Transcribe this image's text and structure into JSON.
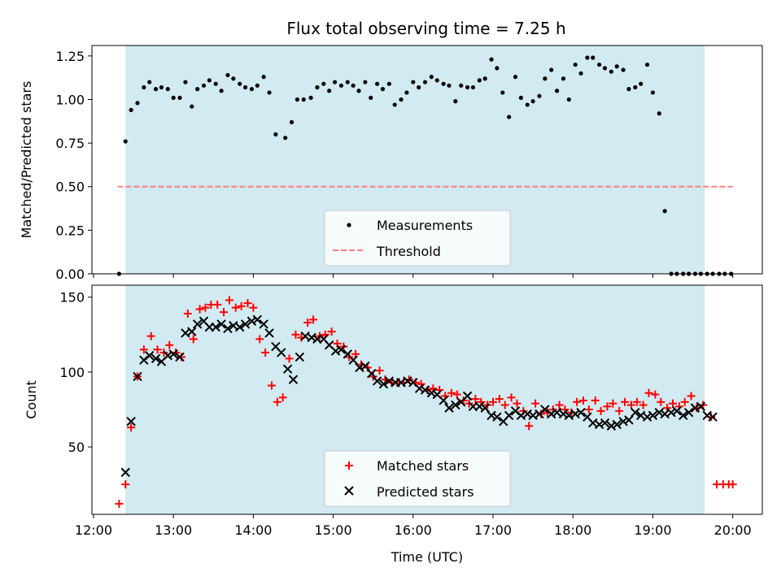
{
  "chart_data": {
    "title": "Flux total observing time = 7.25 h",
    "xlabel": "Time (UTC)",
    "x_unit": "hours UTC",
    "xlim": [
      11.98,
      20.37
    ],
    "x_tick_values": [
      12,
      13,
      14,
      15,
      16,
      17,
      18,
      19,
      20
    ],
    "x_tick_labels": [
      "12:00",
      "13:00",
      "14:00",
      "15:00",
      "16:00",
      "17:00",
      "18:00",
      "19:00",
      "20:00"
    ],
    "shaded_span": [
      12.4,
      19.65
    ],
    "shaded_color": "#add8e6",
    "panels": [
      {
        "id": "ratio",
        "type": "scatter",
        "ylabel": "Matched/Predicted stars",
        "ylim": [
          0,
          1.31
        ],
        "y_ticks": [
          0.0,
          0.25,
          0.5,
          0.75,
          1.0,
          1.25
        ],
        "y_tick_labels": [
          "0.00",
          "0.25",
          "0.50",
          "0.75",
          "1.00",
          "1.25"
        ],
        "legend_position": "lower center",
        "threshold": {
          "name": "Threshold",
          "value": 0.5,
          "x_range": [
            12.3,
            20.0
          ],
          "color": "#ff8080",
          "style": "dashed"
        },
        "series": [
          {
            "name": "Measurements",
            "marker": "dot",
            "color": "#000000",
            "x": [
              12.32,
              12.4,
              12.47,
              12.55,
              12.63,
              12.7,
              12.78,
              12.85,
              12.93,
              13.0,
              13.08,
              13.15,
              13.23,
              13.3,
              13.38,
              13.45,
              13.53,
              13.6,
              13.68,
              13.75,
              13.83,
              13.9,
              13.98,
              14.05,
              14.13,
              14.2,
              14.28,
              14.4,
              14.48,
              14.55,
              14.63,
              14.72,
              14.8,
              14.88,
              14.95,
              15.02,
              15.1,
              15.18,
              15.25,
              15.32,
              15.4,
              15.47,
              15.55,
              15.62,
              15.7,
              15.77,
              15.85,
              15.92,
              16.0,
              16.07,
              16.15,
              16.23,
              16.3,
              16.38,
              16.45,
              16.53,
              16.6,
              16.68,
              16.75,
              16.83,
              16.9,
              16.98,
              17.05,
              17.12,
              17.2,
              17.28,
              17.35,
              17.43,
              17.5,
              17.58,
              17.65,
              17.73,
              17.8,
              17.88,
              17.95,
              18.03,
              18.1,
              18.18,
              18.25,
              18.33,
              18.4,
              18.48,
              18.55,
              18.63,
              18.7,
              18.78,
              18.85,
              18.93,
              19.0,
              19.08,
              19.15,
              19.23,
              19.3,
              19.38,
              19.45,
              19.53,
              19.6,
              19.68,
              19.75,
              19.83,
              19.9,
              19.98
            ],
            "y": [
              0.0,
              0.76,
              0.94,
              0.98,
              1.07,
              1.1,
              1.06,
              1.07,
              1.06,
              1.01,
              1.01,
              1.1,
              0.96,
              1.06,
              1.08,
              1.11,
              1.09,
              1.05,
              1.14,
              1.12,
              1.09,
              1.07,
              1.06,
              1.08,
              1.13,
              1.04,
              0.8,
              0.78,
              0.87,
              1.0,
              1.0,
              1.01,
              1.07,
              1.09,
              1.05,
              1.1,
              1.08,
              1.1,
              1.08,
              1.05,
              1.1,
              1.01,
              1.09,
              1.06,
              1.09,
              0.97,
              1.0,
              1.04,
              1.1,
              1.07,
              1.1,
              1.13,
              1.11,
              1.09,
              1.08,
              0.99,
              1.08,
              1.07,
              1.07,
              1.11,
              1.12,
              1.23,
              1.18,
              1.04,
              0.9,
              1.13,
              1.01,
              0.97,
              0.99,
              1.02,
              1.12,
              1.17,
              1.05,
              1.12,
              1.0,
              1.2,
              1.15,
              1.24,
              1.24,
              1.2,
              1.18,
              1.16,
              1.19,
              1.17,
              1.06,
              1.07,
              1.09,
              1.2,
              1.04,
              0.92,
              0.36,
              0.0,
              0.0,
              0.0,
              0.0,
              0.0,
              0.0,
              0.0,
              0.0,
              0.0,
              0.0,
              0.0
            ]
          }
        ]
      },
      {
        "id": "counts",
        "type": "scatter",
        "ylabel": "Count",
        "ylim": [
          5,
          158
        ],
        "y_ticks": [
          50,
          100,
          150
        ],
        "y_tick_labels": [
          "50",
          "100",
          "150"
        ],
        "legend_position": "lower center",
        "series": [
          {
            "name": "Matched stars",
            "marker": "plus",
            "color": "#ff0000",
            "x": [
              12.32,
              12.4,
              12.47,
              12.55,
              12.63,
              12.72,
              12.8,
              12.88,
              12.95,
              13.03,
              13.1,
              13.18,
              13.25,
              13.33,
              13.4,
              13.47,
              13.55,
              13.63,
              13.7,
              13.78,
              13.85,
              13.93,
              14.0,
              14.08,
              14.15,
              14.23,
              14.3,
              14.37,
              14.45,
              14.53,
              14.6,
              14.68,
              14.75,
              14.83,
              14.9,
              14.98,
              15.05,
              15.13,
              15.2,
              15.28,
              15.35,
              15.43,
              15.5,
              15.58,
              15.65,
              15.73,
              15.8,
              15.88,
              15.95,
              16.03,
              16.1,
              16.18,
              16.25,
              16.33,
              16.4,
              16.48,
              16.55,
              16.63,
              16.7,
              16.78,
              16.85,
              16.93,
              17.0,
              17.08,
              17.15,
              17.23,
              17.3,
              17.38,
              17.45,
              17.53,
              17.6,
              17.68,
              17.75,
              17.83,
              17.9,
              17.98,
              18.05,
              18.13,
              18.2,
              18.28,
              18.35,
              18.43,
              18.5,
              18.58,
              18.65,
              18.73,
              18.8,
              18.88,
              18.95,
              19.03,
              19.1,
              19.18,
              19.25,
              19.33,
              19.4,
              19.48,
              19.55,
              19.63,
              19.73,
              19.8,
              19.88,
              19.95,
              20.0
            ],
            "y": [
              12,
              25,
              63,
              97,
              115,
              124,
              115,
              113,
              118,
              113,
              110,
              139,
              122,
              142,
              143,
              145,
              145,
              140,
              148,
              143,
              144,
              146,
              143,
              122,
              113,
              91,
              80,
              83,
              109,
              125,
              123,
              133,
              135,
              124,
              125,
              127,
              119,
              117,
              110,
              112,
              105,
              103,
              97,
              101,
              95,
              93,
              93,
              93,
              95,
              93,
              92,
              88,
              89,
              88,
              84,
              86,
              85,
              81,
              79,
              82,
              80,
              78,
              80,
              82,
              78,
              83,
              79,
              74,
              64,
              79,
              72,
              73,
              75,
              78,
              75,
              73,
              80,
              81,
              75,
              81,
              74,
              77,
              79,
              74,
              80,
              78,
              80,
              78,
              86,
              85,
              80,
              76,
              79,
              77,
              80,
              84,
              76,
              78,
              70,
              25,
              25,
              25,
              25
            ]
          },
          {
            "name": "Predicted stars",
            "marker": "x",
            "color": "#000000",
            "x": [
              12.4,
              12.47,
              12.55,
              12.63,
              12.7,
              12.78,
              12.85,
              12.93,
              13.0,
              13.08,
              13.15,
              13.23,
              13.3,
              13.38,
              13.45,
              13.53,
              13.6,
              13.68,
              13.75,
              13.83,
              13.9,
              13.98,
              14.05,
              14.13,
              14.2,
              14.28,
              14.35,
              14.43,
              14.5,
              14.58,
              14.65,
              14.73,
              14.8,
              14.88,
              14.95,
              15.03,
              15.1,
              15.18,
              15.25,
              15.33,
              15.4,
              15.48,
              15.55,
              15.63,
              15.7,
              15.78,
              15.85,
              15.93,
              16.0,
              16.08,
              16.15,
              16.23,
              16.3,
              16.38,
              16.45,
              16.53,
              16.6,
              16.68,
              16.75,
              16.83,
              16.9,
              16.98,
              17.05,
              17.13,
              17.2,
              17.28,
              17.35,
              17.43,
              17.5,
              17.58,
              17.65,
              17.73,
              17.8,
              17.88,
              17.95,
              18.03,
              18.1,
              18.18,
              18.25,
              18.33,
              18.4,
              18.48,
              18.55,
              18.63,
              18.7,
              18.78,
              18.85,
              18.93,
              19.0,
              19.08,
              19.15,
              19.23,
              19.3,
              19.38,
              19.45,
              19.53,
              19.6,
              19.68,
              19.75
            ],
            "y": [
              33,
              67,
              97,
              108,
              111,
              109,
              107,
              111,
              112,
              110,
              126,
              127,
              132,
              134,
              130,
              130,
              132,
              129,
              131,
              130,
              132,
              134,
              135,
              132,
              126,
              117,
              113,
              102,
              95,
              110,
              124,
              123,
              122,
              122,
              118,
              114,
              115,
              112,
              108,
              103,
              104,
              99,
              94,
              92,
              94,
              93,
              93,
              94,
              93,
              89,
              88,
              86,
              85,
              81,
              76,
              78,
              80,
              84,
              77,
              77,
              76,
              71,
              70,
              67,
              71,
              74,
              71,
              72,
              71,
              72,
              75,
              72,
              73,
              72,
              71,
              72,
              73,
              70,
              66,
              65,
              66,
              64,
              65,
              67,
              68,
              73,
              71,
              70,
              71,
              73,
              72,
              73,
              74,
              71,
              73,
              76,
              77,
              71,
              70
            ]
          }
        ]
      }
    ]
  }
}
